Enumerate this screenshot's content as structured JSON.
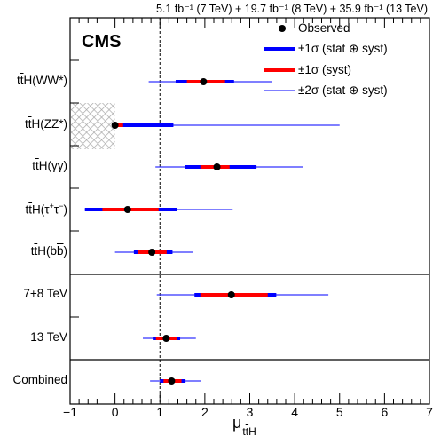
{
  "header": {
    "lumi_text": "5.1 fb⁻¹ (7 TeV) + 19.7 fb⁻¹ (8 TeV) + 35.9 fb⁻¹ (13 TeV)"
  },
  "experiment_label": "CMS",
  "legend": {
    "observed": "Observed",
    "stat_syst_1sigma": "±1σ (stat ⊕ syst)",
    "syst_1sigma": "±1σ (syst)",
    "stat_syst_2sigma": "±2σ (stat ⊕ syst)"
  },
  "colors": {
    "total_1sigma": "#0000ff",
    "syst_1sigma": "#ff0000",
    "total_2sigma": "#3333ff",
    "marker": "#000000",
    "hatch": "#a0a0a0"
  },
  "chart_data": {
    "type": "scatter",
    "xlabel": "μ_ttH",
    "xlim": [
      -1,
      7
    ],
    "xticks": [
      "−1",
      "0",
      "1",
      "2",
      "3",
      "4",
      "5",
      "6",
      "7"
    ],
    "reference_line_x": 1,
    "groups": [
      "channels",
      "energies",
      "combined"
    ],
    "rows": [
      {
        "label": "ttH(WW*)",
        "mu": 1.97,
        "tot1": [
          1.35,
          2.65
        ],
        "syst1": [
          1.6,
          2.45
        ],
        "tot2": [
          0.75,
          3.5
        ]
      },
      {
        "label": "ttH(ZZ*)",
        "mu": 0.0,
        "tot1": [
          0.0,
          1.3
        ],
        "syst1": [
          0.0,
          0.18
        ],
        "tot2": [
          0.0,
          5.0
        ],
        "excluded_below": 0
      },
      {
        "label": "ttH(γγ)",
        "mu": 2.27,
        "tot1": [
          1.55,
          3.15
        ],
        "syst1": [
          1.9,
          2.55
        ],
        "tot2": [
          0.9,
          4.18
        ]
      },
      {
        "label": "ttH(τ⁺τ⁻)",
        "mu": 0.28,
        "tot1": [
          -0.67,
          1.38
        ],
        "syst1": [
          -0.28,
          0.97
        ],
        "tot2": [
          -0.67,
          2.62
        ]
      },
      {
        "label": "ttH(bb)",
        "mu": 0.82,
        "tot1": [
          0.42,
          1.28
        ],
        "syst1": [
          0.5,
          1.15
        ],
        "tot2": [
          0.0,
          1.73
        ]
      },
      {
        "label": "7+8 TeV",
        "mu": 2.59,
        "tot1": [
          1.77,
          3.59
        ],
        "syst1": [
          1.9,
          3.4
        ],
        "tot2": [
          0.93,
          4.75
        ]
      },
      {
        "label": "13 TeV",
        "mu": 1.14,
        "tot1": [
          0.84,
          1.45
        ],
        "syst1": [
          0.91,
          1.38
        ],
        "tot2": [
          0.62,
          1.8
        ]
      },
      {
        "label": "Combined",
        "mu": 1.26,
        "tot1": [
          1.0,
          1.57
        ],
        "syst1": [
          1.08,
          1.48
        ],
        "tot2": [
          0.78,
          1.92
        ]
      }
    ]
  }
}
